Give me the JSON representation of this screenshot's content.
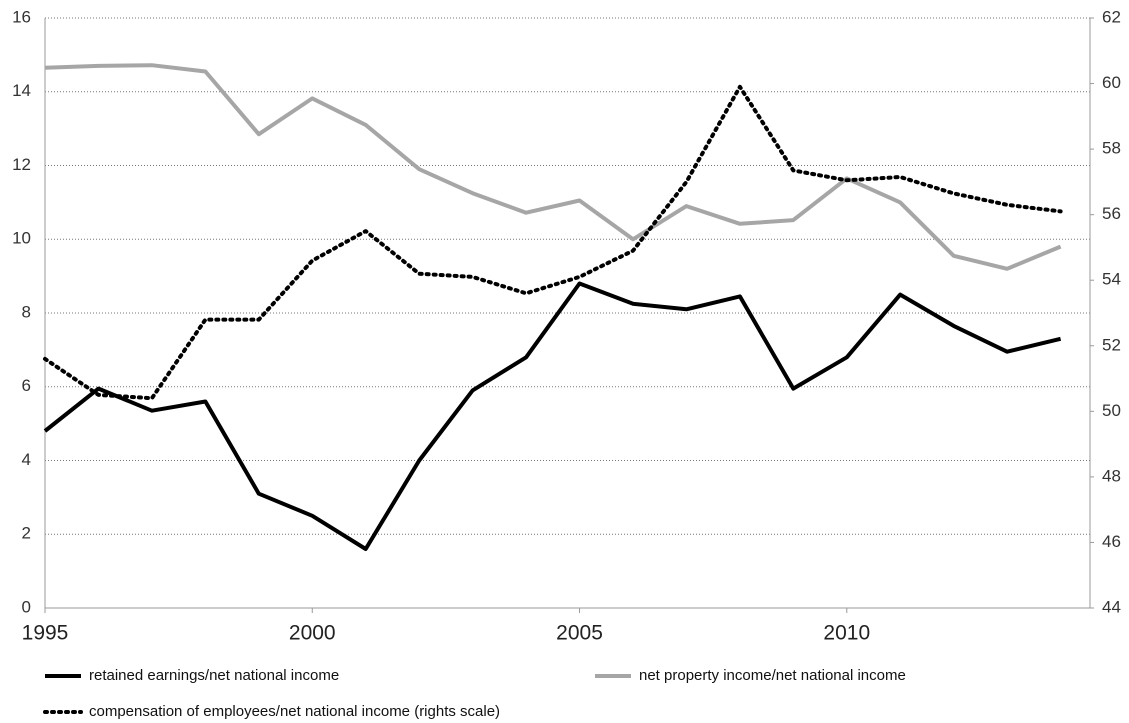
{
  "chart_data": {
    "type": "line",
    "x": [
      1995,
      1996,
      1997,
      1998,
      1999,
      2000,
      2001,
      2002,
      2003,
      2004,
      2005,
      2006,
      2007,
      2008,
      2009,
      2010,
      2011,
      2012,
      2013,
      2014
    ],
    "xlim": [
      1995,
      2014.55
    ],
    "xticks": [
      1995,
      2000,
      2005,
      2010
    ],
    "ylim": [
      0,
      16
    ],
    "yticks": [
      0,
      2,
      4,
      6,
      8,
      10,
      12,
      14,
      16
    ],
    "y2lim": [
      44,
      62
    ],
    "y2ticks": [
      44,
      46,
      48,
      50,
      52,
      54,
      56,
      58,
      60,
      62
    ],
    "grid": true,
    "legend": "bottom",
    "series": [
      {
        "name": "retained earnings/net national income",
        "color": "#000000",
        "style": "solid",
        "values": [
          4.8,
          5.95,
          5.35,
          5.6,
          3.1,
          2.5,
          1.6,
          4.0,
          5.9,
          6.8,
          8.8,
          8.25,
          8.1,
          8.45,
          5.95,
          6.8,
          8.5,
          7.65,
          6.95,
          7.3
        ]
      },
      {
        "name": "net property income/net national income",
        "color": "#a6a6a6",
        "style": "solid",
        "values": [
          14.65,
          14.7,
          14.72,
          14.55,
          12.85,
          13.82,
          13.1,
          11.9,
          11.25,
          10.72,
          11.05,
          10.0,
          10.9,
          10.42,
          10.52,
          11.65,
          11.0,
          9.55,
          9.2,
          9.8
        ]
      },
      {
        "name": "compensation of employees/net national income (rights scale)",
        "color": "#000000",
        "style": "dotted",
        "axis": "y2",
        "values": [
          51.6,
          50.5,
          50.4,
          52.8,
          52.8,
          54.6,
          55.5,
          54.2,
          54.1,
          53.6,
          54.1,
          54.9,
          57.0,
          59.9,
          57.35,
          57.05,
          57.15,
          56.65,
          56.3,
          56.1
        ]
      }
    ]
  }
}
